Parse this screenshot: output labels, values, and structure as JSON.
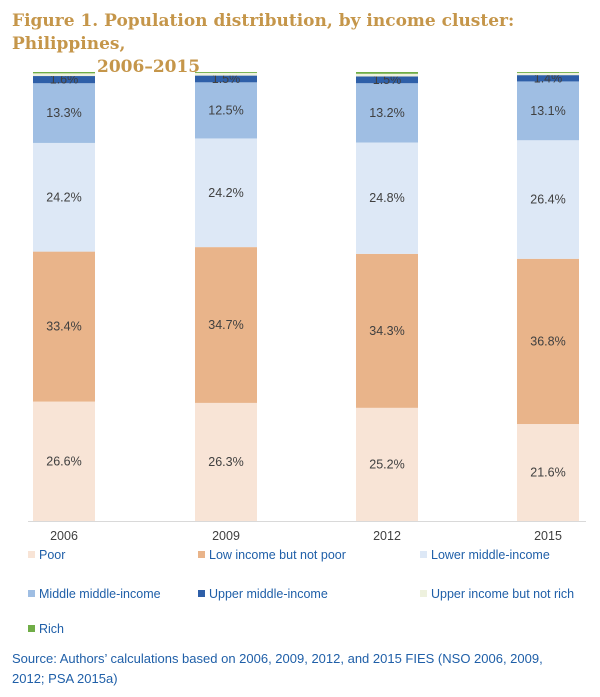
{
  "figure": {
    "title_line1": "Figure 1. Population distribution, by income cluster: Philippines,",
    "title_line2": "2006–2015",
    "source": "Source: Authors’ calculations based on 2006, 2009, 2012, and 2015 FIES (NSO 2006, 2009, 2012; PSA 2015a)"
  },
  "chart_data": {
    "type": "bar",
    "stacked": true,
    "categories": [
      "2006",
      "2009",
      "2012",
      "2015"
    ],
    "ylim": [
      0,
      100
    ],
    "grid": false,
    "legend_placement": "bottom",
    "series": [
      {
        "name": "Poor",
        "color": "#F8E4D6",
        "values": [
          26.6,
          26.3,
          25.2,
          21.6
        ],
        "labels": [
          "26.6%",
          "26.3%",
          "25.2%",
          "21.6%"
        ]
      },
      {
        "name": "Low income but not poor",
        "color": "#E9B48A",
        "values": [
          33.4,
          34.7,
          34.3,
          36.8
        ],
        "labels": [
          "33.4%",
          "34.7%",
          "34.3%",
          "36.8%"
        ]
      },
      {
        "name": "Lower middle-income",
        "color": "#DDE8F6",
        "values": [
          24.2,
          24.2,
          24.8,
          26.4
        ],
        "labels": [
          "24.2%",
          "24.2%",
          "24.8%",
          "26.4%"
        ]
      },
      {
        "name": "Middle middle-income",
        "color": "#9FBEE3",
        "values": [
          13.3,
          12.5,
          13.2,
          13.1
        ],
        "labels": [
          "13.3%",
          "12.5%",
          "13.2%",
          "13.1%"
        ]
      },
      {
        "name": "Upper middle-income",
        "color": "#2E5FA8",
        "values": [
          1.6,
          1.5,
          1.5,
          1.4
        ],
        "labels": [
          "1.6%",
          "1.5%",
          "1.5%",
          "1.4%"
        ]
      },
      {
        "name": "Upper income but not rich",
        "color": "#EEF1DE",
        "values": [
          0.6,
          0.6,
          0.6,
          0.5
        ],
        "labels": []
      },
      {
        "name": "Rich",
        "color": "#70AD47",
        "values": [
          0.3,
          0.2,
          0.4,
          0.2
        ],
        "labels": []
      }
    ]
  }
}
